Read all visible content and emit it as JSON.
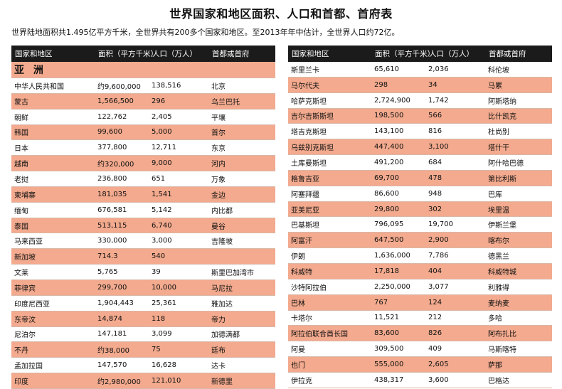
{
  "title": "世界国家和地区面积、人口和首都、首府表",
  "subtitle": "世界陆地面积共1.495亿平方千米，全世界共有200多个国家和地区。至2013年年中估计，全世界人口约72亿。",
  "headers": [
    "国家和地区",
    "面积（平方千米）",
    "人口（万人）",
    "首都或首府"
  ],
  "left_table": {
    "region": "亚 洲",
    "rows": [
      [
        "中华人民共和国",
        "约9,600,000",
        "138,516",
        "北京"
      ],
      [
        "蒙古",
        "1,566,500",
        "296",
        "乌兰巴托"
      ],
      [
        "朝鲜",
        "122,762",
        "2,405",
        "平壤"
      ],
      [
        "韩国",
        "99,600",
        "5,000",
        "首尔"
      ],
      [
        "日本",
        "377,800",
        "12,711",
        "东京"
      ],
      [
        "越南",
        "约320,000",
        "9,000",
        "河内"
      ],
      [
        "老挝",
        "236,800",
        "651",
        "万象"
      ],
      [
        "柬埔寨",
        "181,035",
        "1,541",
        "金边"
      ],
      [
        "缅甸",
        "676,581",
        "5,142",
        "内比都"
      ],
      [
        "泰国",
        "513,115",
        "6,740",
        "曼谷"
      ],
      [
        "马来西亚",
        "330,000",
        "3,000",
        "吉隆坡"
      ],
      [
        "新加坡",
        "714.3",
        "540",
        ""
      ],
      [
        "文莱",
        "5,765",
        "39",
        "斯里巴加湾市"
      ],
      [
        "菲律宾",
        "299,700",
        "10,000",
        "马尼拉"
      ],
      [
        "印度尼西亚",
        "1,904,443",
        "25,361",
        "雅加达"
      ],
      [
        "东帝汶",
        "14,874",
        "118",
        "帝力"
      ],
      [
        "尼泊尔",
        "147,181",
        "3,099",
        "加德满都"
      ],
      [
        "不丹",
        "约38,000",
        "75",
        "廷布"
      ],
      [
        "孟加拉国",
        "147,570",
        "16,628",
        "达卡"
      ],
      [
        "印度",
        "约2,980,000",
        "121,010",
        "新德里"
      ]
    ]
  },
  "right_table": {
    "rows": [
      [
        "斯里兰卡",
        "65,610",
        "2,036",
        "科伦坡"
      ],
      [
        "马尔代夫",
        "298",
        "34",
        "马累"
      ],
      [
        "哈萨克斯坦",
        "2,724,900",
        "1,742",
        "阿斯塔纳"
      ],
      [
        "吉尔吉斯斯坦",
        "198,500",
        "566",
        "比什凯克"
      ],
      [
        "塔吉克斯坦",
        "143,100",
        "816",
        "杜尚别"
      ],
      [
        "乌兹别克斯坦",
        "447,400",
        "3,100",
        "塔什干"
      ],
      [
        "土库曼斯坦",
        "491,200",
        "684",
        "阿什哈巴德"
      ],
      [
        "格鲁吉亚",
        "69,700",
        "478",
        "第比利斯"
      ],
      [
        "阿塞拜疆",
        "86,600",
        "948",
        "巴库"
      ],
      [
        "亚美尼亚",
        "29,800",
        "302",
        "埃里温"
      ],
      [
        "巴基斯坦",
        "796,095",
        "19,700",
        "伊斯兰堡"
      ],
      [
        "阿富汗",
        "647,500",
        "2,900",
        "喀布尔"
      ],
      [
        "伊朗",
        "1,636,000",
        "7,786",
        "德黑兰"
      ],
      [
        "科威特",
        "17,818",
        "404",
        "科威特城"
      ],
      [
        "沙特阿拉伯",
        "2,250,000",
        "3,077",
        "利雅得"
      ],
      [
        "巴林",
        "767",
        "124",
        "麦纳麦"
      ],
      [
        "卡塔尔",
        "11,521",
        "212",
        "多哈"
      ],
      [
        "阿拉伯联合酋长国",
        "83,600",
        "826",
        "阿布扎比"
      ],
      [
        "阿曼",
        "309,500",
        "409",
        "马斯喀特"
      ],
      [
        "也门",
        "555,000",
        "2,605",
        "萨那"
      ],
      [
        "伊拉克",
        "438,317",
        "3,600",
        "巴格达"
      ]
    ]
  }
}
